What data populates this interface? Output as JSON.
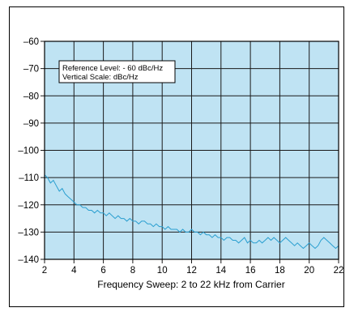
{
  "colors": {
    "plot_background": "#bfe3f3",
    "grid": "#1a1a1a",
    "trace": "#2a9fd0",
    "frame": "#000000"
  },
  "chart_data": {
    "type": "line",
    "title": "",
    "xlabel": "Frequency Sweep: 2 to 22 kHz from Carrier",
    "ylabel": "",
    "xlim": [
      2,
      22
    ],
    "ylim": [
      -140,
      -60
    ],
    "x_ticks": [
      2,
      4,
      6,
      8,
      10,
      12,
      14,
      16,
      18,
      20,
      22
    ],
    "x_tick_labels": [
      "2",
      "4",
      "6",
      "8",
      "10",
      "12",
      "14",
      "16",
      "18",
      "20",
      "22"
    ],
    "y_ticks": [
      -60,
      -70,
      -80,
      -90,
      -100,
      -110,
      -120,
      -130,
      -140
    ],
    "y_tick_labels": [
      "–60",
      "–70",
      "–80",
      "–90",
      "–100",
      "–110",
      "–120",
      "–130",
      "–140"
    ],
    "grid": true,
    "annotations": [
      "Reference Level: - 60 dBc/Hz",
      "Vertical Scale: dBc/Hz"
    ],
    "series": [
      {
        "x": [
          2.0,
          2.2,
          2.4,
          2.6,
          2.8,
          3.0,
          3.2,
          3.4,
          3.6,
          3.8,
          4.0,
          4.2,
          4.4,
          4.6,
          4.8,
          5.0,
          5.2,
          5.4,
          5.6,
          5.8,
          6.0,
          6.2,
          6.4,
          6.6,
          6.8,
          7.0,
          7.2,
          7.4,
          7.6,
          7.8,
          8.0,
          8.2,
          8.4,
          8.6,
          8.8,
          9.0,
          9.2,
          9.4,
          9.6,
          9.8,
          10.0,
          10.2,
          10.4,
          10.6,
          10.8,
          11.0,
          11.2,
          11.4,
          11.6,
          11.8,
          12.0,
          12.2,
          12.4,
          12.6,
          12.8,
          13.0,
          13.2,
          13.4,
          13.6,
          13.8,
          14.0,
          14.2,
          14.4,
          14.6,
          14.8,
          15.0,
          15.2,
          15.4,
          15.6,
          15.8,
          16.0,
          16.2,
          16.4,
          16.6,
          16.8,
          17.0,
          17.2,
          17.4,
          17.6,
          17.8,
          18.0,
          18.2,
          18.4,
          18.6,
          18.8,
          19.0,
          19.2,
          19.4,
          19.6,
          19.8,
          20.0,
          20.2,
          20.4,
          20.6,
          20.8,
          21.0,
          21.2,
          21.4,
          21.6,
          21.8,
          22.0
        ],
        "y": [
          -109,
          -110,
          -112,
          -111,
          -113,
          -115,
          -114,
          -116,
          -117,
          -118,
          -119,
          -120,
          -120,
          -121,
          -121,
          -122,
          -122,
          -123,
          -122,
          -123,
          -123,
          -124,
          -123,
          -124,
          -125,
          -124,
          -125,
          -125,
          -126,
          -125,
          -126,
          -126,
          -127,
          -126,
          -126,
          -127,
          -127,
          -128,
          -127,
          -128,
          -128,
          -129,
          -128,
          -129,
          -129,
          -129,
          -130,
          -129,
          -130,
          -130,
          -129,
          -130,
          -130,
          -131,
          -130,
          -131,
          -131,
          -132,
          -131,
          -132,
          -132,
          -133,
          -132,
          -132,
          -133,
          -133,
          -134,
          -133,
          -132,
          -134,
          -133,
          -134,
          -134,
          -133,
          -134,
          -133,
          -132,
          -133,
          -132,
          -133,
          -134,
          -133,
          -132,
          -133,
          -134,
          -135,
          -134,
          -135,
          -136,
          -135,
          -134,
          -135,
          -136,
          -135,
          -133,
          -132,
          -133,
          -134,
          -135,
          -136,
          -135
        ]
      }
    ]
  }
}
